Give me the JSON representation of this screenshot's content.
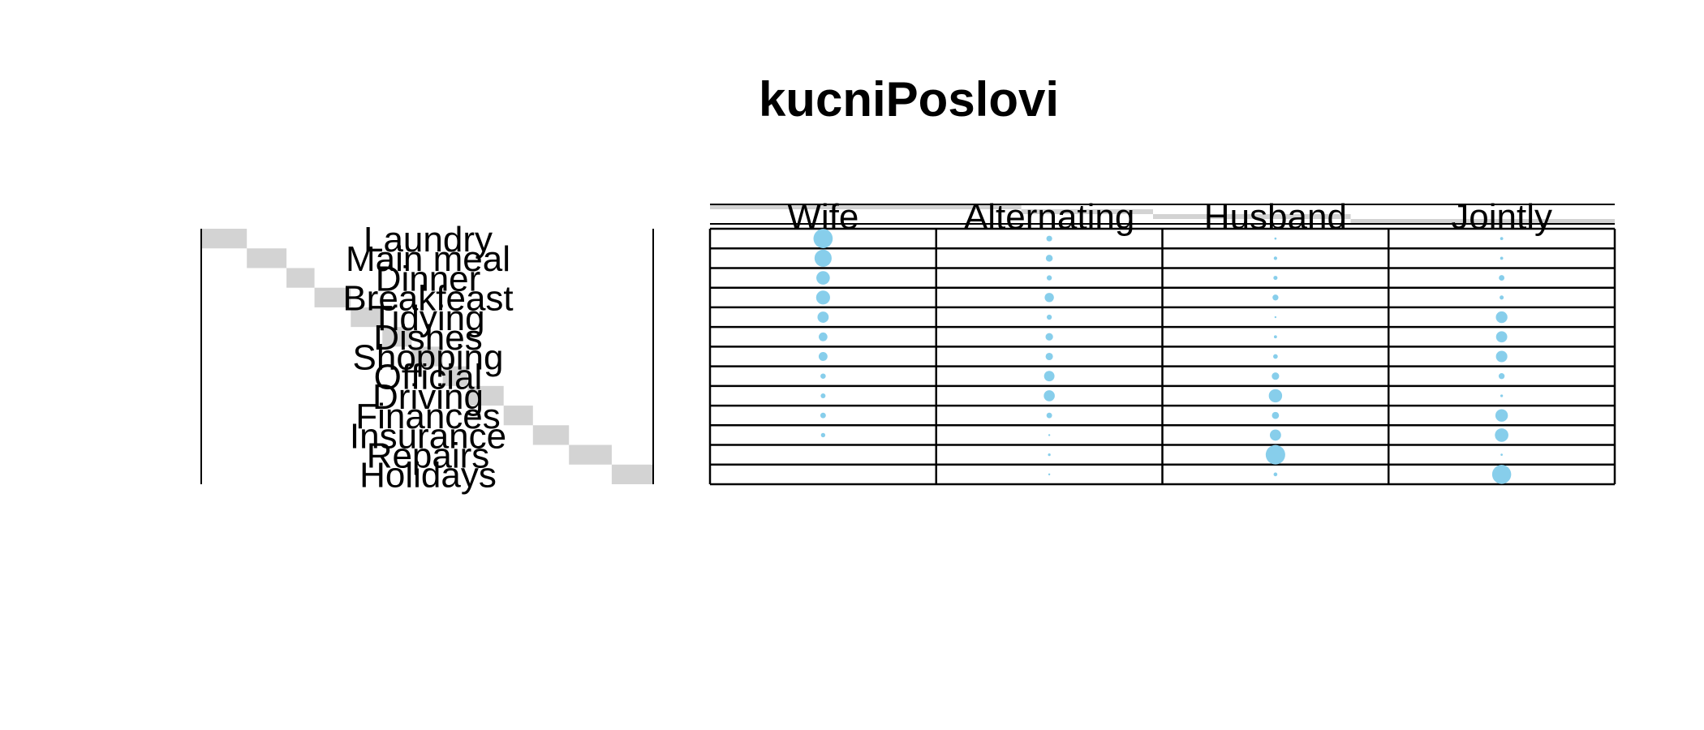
{
  "chart_data": {
    "type": "balloon",
    "title": "kucniPoslovi",
    "rows": [
      "Laundry",
      "Main_meal",
      "Dinner",
      "Breakfeast",
      "Tidying",
      "Dishes",
      "Shopping",
      "Official",
      "Driving",
      "Finances",
      "Insurance",
      "Repairs",
      "Holidays"
    ],
    "columns": [
      "Wife",
      "Alternating",
      "Husband",
      "Jointly"
    ],
    "values": [
      [
        156,
        14,
        2,
        4
      ],
      [
        124,
        20,
        5,
        4
      ],
      [
        77,
        11,
        7,
        13
      ],
      [
        82,
        36,
        15,
        7
      ],
      [
        53,
        11,
        1,
        57
      ],
      [
        32,
        24,
        4,
        53
      ],
      [
        33,
        23,
        9,
        55
      ],
      [
        12,
        46,
        23,
        15
      ],
      [
        10,
        51,
        75,
        3
      ],
      [
        13,
        13,
        21,
        66
      ],
      [
        8,
        1,
        53,
        77
      ],
      [
        0,
        3,
        160,
        2
      ],
      [
        0,
        1,
        6,
        153
      ]
    ],
    "colors": {
      "balloon": "#87CEEB",
      "bar": "#D3D3D3",
      "line": "#000000"
    }
  }
}
